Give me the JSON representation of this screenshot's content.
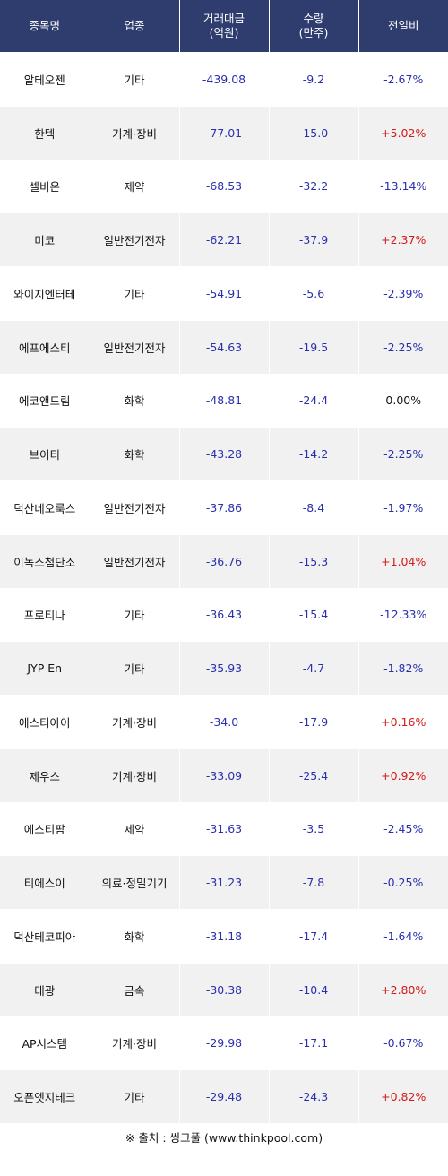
{
  "header": {
    "col1": "종목명",
    "col2": "업종",
    "col3_line1": "거래대금",
    "col3_line2": "(억원)",
    "col4_line1": "수량",
    "col4_line2": "(만주)",
    "col5": "전일비"
  },
  "rows": [
    {
      "name": "알테오젠",
      "sector": "기타",
      "amount": "-439.08",
      "qty": "-9.2",
      "change": "-2.67%",
      "dir": "down"
    },
    {
      "name": "한텍",
      "sector": "기계·장비",
      "amount": "-77.01",
      "qty": "-15.0",
      "change": "+5.02%",
      "dir": "up"
    },
    {
      "name": "셀비온",
      "sector": "제약",
      "amount": "-68.53",
      "qty": "-32.2",
      "change": "-13.14%",
      "dir": "down"
    },
    {
      "name": "미코",
      "sector": "일반전기전자",
      "amount": "-62.21",
      "qty": "-37.9",
      "change": "+2.37%",
      "dir": "up"
    },
    {
      "name": "와이지엔터테",
      "sector": "기타",
      "amount": "-54.91",
      "qty": "-5.6",
      "change": "-2.39%",
      "dir": "down"
    },
    {
      "name": "에프에스티",
      "sector": "일반전기전자",
      "amount": "-54.63",
      "qty": "-19.5",
      "change": "-2.25%",
      "dir": "down"
    },
    {
      "name": "에코앤드림",
      "sector": "화학",
      "amount": "-48.81",
      "qty": "-24.4",
      "change": "0.00%",
      "dir": "flat"
    },
    {
      "name": "브이티",
      "sector": "화학",
      "amount": "-43.28",
      "qty": "-14.2",
      "change": "-2.25%",
      "dir": "down"
    },
    {
      "name": "덕산네오룩스",
      "sector": "일반전기전자",
      "amount": "-37.86",
      "qty": "-8.4",
      "change": "-1.97%",
      "dir": "down"
    },
    {
      "name": "이녹스첨단소",
      "sector": "일반전기전자",
      "amount": "-36.76",
      "qty": "-15.3",
      "change": "+1.04%",
      "dir": "up"
    },
    {
      "name": "프로티나",
      "sector": "기타",
      "amount": "-36.43",
      "qty": "-15.4",
      "change": "-12.33%",
      "dir": "down"
    },
    {
      "name": "JYP En",
      "sector": "기타",
      "amount": "-35.93",
      "qty": "-4.7",
      "change": "-1.82%",
      "dir": "down"
    },
    {
      "name": "에스티아이",
      "sector": "기계·장비",
      "amount": "-34.0",
      "qty": "-17.9",
      "change": "+0.16%",
      "dir": "up"
    },
    {
      "name": "제우스",
      "sector": "기계·장비",
      "amount": "-33.09",
      "qty": "-25.4",
      "change": "+0.92%",
      "dir": "up"
    },
    {
      "name": "에스티팜",
      "sector": "제약",
      "amount": "-31.63",
      "qty": "-3.5",
      "change": "-2.45%",
      "dir": "down"
    },
    {
      "name": "티에스이",
      "sector": "의료·정밀기기",
      "amount": "-31.23",
      "qty": "-7.8",
      "change": "-0.25%",
      "dir": "down"
    },
    {
      "name": "덕산테코피아",
      "sector": "화학",
      "amount": "-31.18",
      "qty": "-17.4",
      "change": "-1.64%",
      "dir": "down"
    },
    {
      "name": "태광",
      "sector": "금속",
      "amount": "-30.38",
      "qty": "-10.4",
      "change": "+2.80%",
      "dir": "up"
    },
    {
      "name": "AP시스템",
      "sector": "기계·장비",
      "amount": "-29.98",
      "qty": "-17.1",
      "change": "-0.67%",
      "dir": "down"
    },
    {
      "name": "오픈엣지테크",
      "sector": "기타",
      "amount": "-29.48",
      "qty": "-24.3",
      "change": "+0.82%",
      "dir": "up"
    }
  ],
  "colors": {
    "header_bg": "#2f3c6e",
    "up": "#d41a1a",
    "down": "#2a2fae",
    "row_alt": "#f1f1f1"
  },
  "source": "※ 출처 : 씽크풀 (www.thinkpool.com)"
}
